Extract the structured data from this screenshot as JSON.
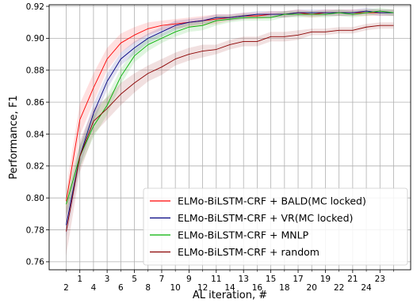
{
  "chart_data": {
    "type": "line",
    "xlabel": "AL iteration, #",
    "ylabel": "Performance, F1",
    "xlim": [
      -1.25,
      25.25
    ],
    "ylim": [
      0.755,
      0.921
    ],
    "xticks": [
      1,
      3,
      5,
      7,
      9,
      11,
      13,
      15,
      17,
      19,
      21,
      23
    ],
    "xticks_labeled": [
      1,
      3,
      5,
      7,
      9,
      11,
      13,
      15,
      17,
      19,
      21,
      23
    ],
    "xtick_labels": [
      "1",
      "3",
      "5",
      "7",
      "9",
      "11",
      "13",
      "15",
      "17",
      "19",
      "21",
      "23"
    ],
    "xminor_ticks": [
      0,
      2,
      4,
      6,
      8,
      10,
      12,
      14,
      16,
      18,
      20,
      22,
      24
    ],
    "xminor_labels": [
      "2",
      "4",
      "6",
      "8",
      "10",
      "12",
      "14",
      "16",
      "18",
      "20",
      "22",
      "24"
    ],
    "yticks": [
      0.76,
      0.78,
      0.8,
      0.82,
      0.84,
      0.86,
      0.88,
      0.9,
      0.92
    ],
    "ytick_labels": [
      "0.76",
      "0.78",
      "0.80",
      "0.82",
      "0.84",
      "0.86",
      "0.88",
      "0.90",
      "0.92"
    ],
    "grid": true,
    "legend_position": "lower-right",
    "x": [
      0,
      1,
      2,
      3,
      4,
      5,
      6,
      7,
      8,
      9,
      10,
      11,
      12,
      13,
      14,
      15,
      16,
      17,
      18,
      19,
      20,
      21,
      22,
      23,
      24
    ],
    "series": [
      {
        "name": "ELMo-BiLSTM-CRF + BALD(MC locked)",
        "color": "#ff0000",
        "values": [
          0.798,
          0.849,
          0.869,
          0.887,
          0.897,
          0.902,
          0.906,
          0.908,
          0.909,
          0.91,
          0.911,
          0.912,
          0.913,
          0.914,
          0.914,
          0.915,
          0.915,
          0.916,
          0.915,
          0.916,
          0.916,
          0.916,
          0.916,
          0.916,
          0.916
        ],
        "band": [
          0.008,
          0.01,
          0.009,
          0.007,
          0.006,
          0.005,
          0.004,
          0.003,
          0.003,
          0.003,
          0.003,
          0.003,
          0.002,
          0.002,
          0.002,
          0.002,
          0.002,
          0.002,
          0.002,
          0.002,
          0.002,
          0.002,
          0.002,
          0.002,
          0.002
        ]
      },
      {
        "name": "ELMo-BiLSTM-CRF + VR(MC locked)",
        "color": "#000080",
        "values": [
          0.783,
          0.826,
          0.853,
          0.873,
          0.887,
          0.894,
          0.9,
          0.904,
          0.908,
          0.91,
          0.911,
          0.913,
          0.913,
          0.914,
          0.915,
          0.915,
          0.915,
          0.916,
          0.916,
          0.916,
          0.916,
          0.916,
          0.917,
          0.916,
          0.916
        ],
        "band": [
          0.008,
          0.007,
          0.006,
          0.005,
          0.004,
          0.004,
          0.003,
          0.003,
          0.003,
          0.002,
          0.002,
          0.002,
          0.002,
          0.002,
          0.002,
          0.002,
          0.002,
          0.002,
          0.002,
          0.002,
          0.002,
          0.002,
          0.002,
          0.002,
          0.002
        ]
      },
      {
        "name": "ELMo-BiLSTM-CRF + MNLP",
        "color": "#00b000",
        "values": [
          0.796,
          0.826,
          0.845,
          0.858,
          0.876,
          0.889,
          0.896,
          0.9,
          0.904,
          0.907,
          0.908,
          0.911,
          0.912,
          0.913,
          0.913,
          0.913,
          0.915,
          0.915,
          0.915,
          0.915,
          0.916,
          0.915,
          0.916,
          0.917,
          0.916
        ],
        "band": [
          0.007,
          0.007,
          0.007,
          0.006,
          0.005,
          0.004,
          0.004,
          0.003,
          0.003,
          0.003,
          0.003,
          0.003,
          0.002,
          0.002,
          0.002,
          0.002,
          0.002,
          0.002,
          0.002,
          0.002,
          0.002,
          0.002,
          0.002,
          0.002,
          0.002
        ]
      },
      {
        "name": "ELMo-BiLSTM-CRF + random",
        "color": "#8b0000",
        "values": [
          0.779,
          0.826,
          0.848,
          0.856,
          0.865,
          0.872,
          0.878,
          0.882,
          0.887,
          0.89,
          0.892,
          0.893,
          0.896,
          0.898,
          0.898,
          0.901,
          0.901,
          0.902,
          0.904,
          0.904,
          0.905,
          0.905,
          0.907,
          0.908,
          0.908
        ],
        "band": [
          0.015,
          0.01,
          0.008,
          0.007,
          0.007,
          0.006,
          0.005,
          0.005,
          0.004,
          0.004,
          0.004,
          0.003,
          0.003,
          0.003,
          0.003,
          0.003,
          0.003,
          0.003,
          0.002,
          0.002,
          0.002,
          0.002,
          0.002,
          0.002,
          0.002
        ]
      }
    ]
  }
}
